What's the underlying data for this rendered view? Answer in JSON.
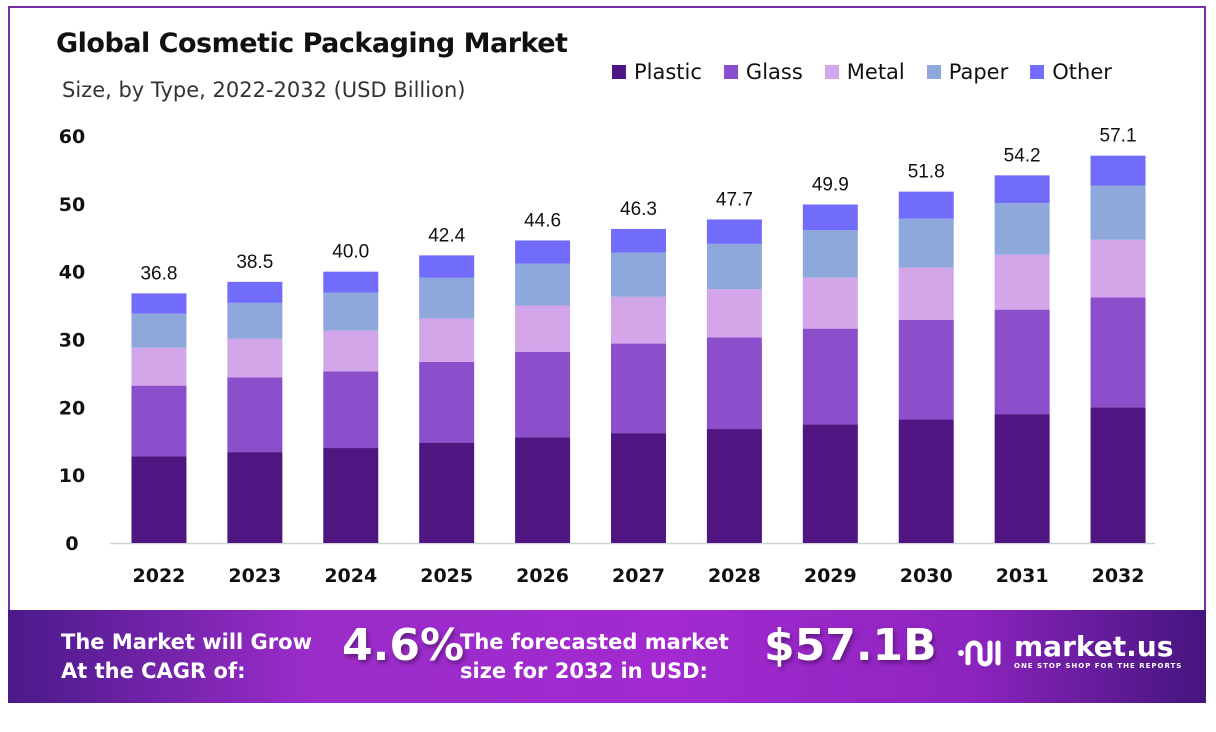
{
  "chart_data": {
    "type": "bar",
    "stacked": true,
    "title": "Global Cosmetic Packaging Market",
    "subtitle": "Size, by Type, 2022-2032 (USD Billion)",
    "xlabel": "",
    "ylabel": "",
    "ylim": [
      0,
      60
    ],
    "yticks": [
      0,
      10,
      20,
      30,
      40,
      50,
      60
    ],
    "grid": false,
    "legend_position": "top-right",
    "categories": [
      "2022",
      "2023",
      "2024",
      "2025",
      "2026",
      "2027",
      "2028",
      "2029",
      "2030",
      "2031",
      "2032"
    ],
    "series": [
      {
        "name": "Plastic",
        "color": "#4f1682",
        "values": [
          12.8,
          13.4,
          14.0,
          14.8,
          15.6,
          16.2,
          16.8,
          17.5,
          18.2,
          19.0,
          20.0
        ]
      },
      {
        "name": "Glass",
        "color": "#8b4fcc",
        "values": [
          10.4,
          11.0,
          11.3,
          11.9,
          12.6,
          13.2,
          13.5,
          14.1,
          14.7,
          15.4,
          16.2
        ]
      },
      {
        "name": "Metal",
        "color": "#d3a6ea",
        "values": [
          5.6,
          5.7,
          6.0,
          6.4,
          6.8,
          6.9,
          7.1,
          7.5,
          7.7,
          8.1,
          8.5
        ]
      },
      {
        "name": "Paper",
        "color": "#8ea8dc",
        "values": [
          5.0,
          5.3,
          5.6,
          6.0,
          6.2,
          6.5,
          6.7,
          7.0,
          7.2,
          7.6,
          8.0
        ]
      },
      {
        "name": "Other",
        "color": "#716cfc",
        "values": [
          3.0,
          3.1,
          3.1,
          3.3,
          3.4,
          3.5,
          3.6,
          3.8,
          4.0,
          4.1,
          4.4
        ]
      }
    ],
    "totals": [
      "36.8",
      "38.5",
      "40.0",
      "42.4",
      "44.6",
      "46.3",
      "47.7",
      "49.9",
      "51.8",
      "54.2",
      "57.1"
    ]
  },
  "footer": {
    "cagr_label_line1": "The Market will Grow",
    "cagr_label_line2": "At the CAGR of:",
    "cagr_value": "4.6%",
    "forecast_label_line1": "The forecasted market",
    "forecast_label_line2": "size for 2032 in USD:",
    "forecast_value": "$57.1B",
    "brand_name": "market.us",
    "brand_tagline": "ONE STOP SHOP FOR THE REPORTS"
  }
}
